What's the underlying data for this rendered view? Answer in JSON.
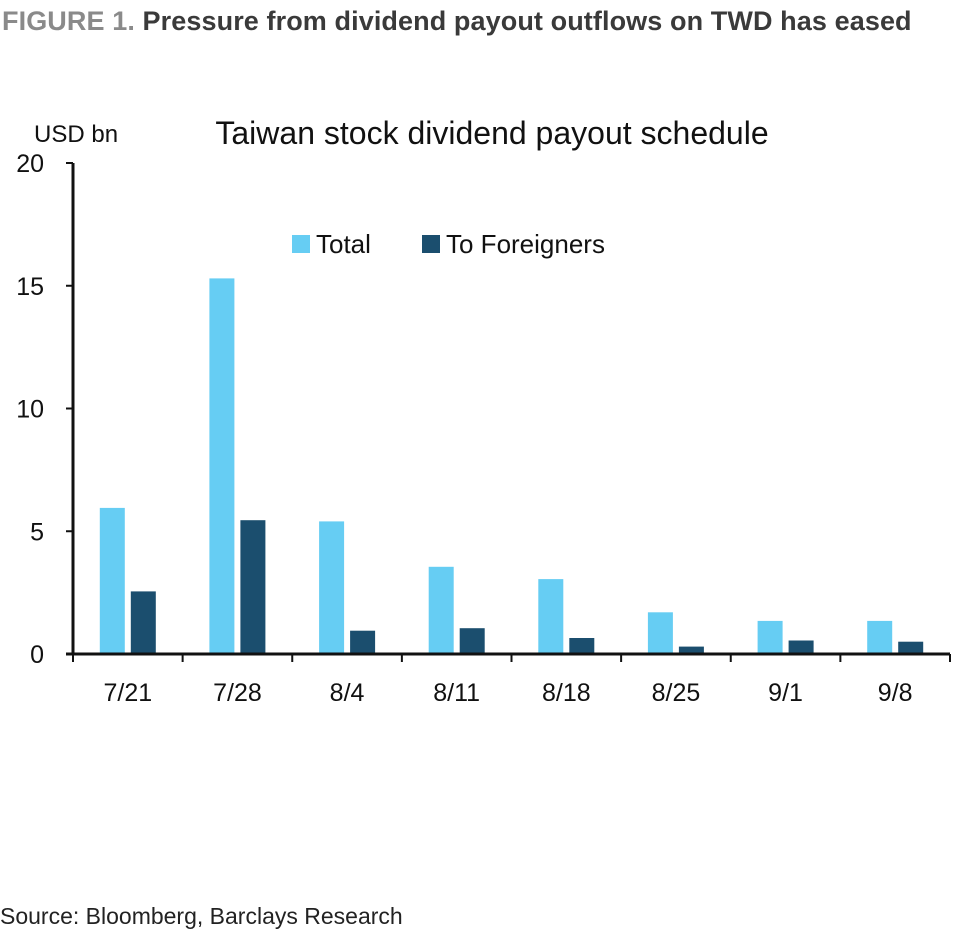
{
  "figure": {
    "label": "FIGURE 1.",
    "title": "Pressure from dividend payout outflows on TWD has eased"
  },
  "source": "Source: Bloomberg, Barclays Research",
  "colors": {
    "total": "#66cdf3",
    "foreigners": "#1b4e6e",
    "axis": "#111111"
  },
  "chart_data": {
    "type": "bar",
    "title": "Taiwan stock dividend payout schedule",
    "ylabel": "USD bn",
    "xlabel": "",
    "ylim": [
      0,
      20
    ],
    "yticks": [
      0,
      5,
      10,
      15,
      20
    ],
    "categories": [
      "7/21",
      "7/28",
      "8/4",
      "8/11",
      "8/18",
      "8/25",
      "9/1",
      "9/8"
    ],
    "series": [
      {
        "name": "Total",
        "values": [
          5.95,
          15.3,
          5.4,
          3.55,
          3.05,
          1.7,
          1.35,
          1.35
        ]
      },
      {
        "name": "To Foreigners",
        "values": [
          2.55,
          5.45,
          0.95,
          1.05,
          0.65,
          0.3,
          0.55,
          0.5
        ]
      }
    ],
    "legend": "top-center",
    "grid": false
  }
}
